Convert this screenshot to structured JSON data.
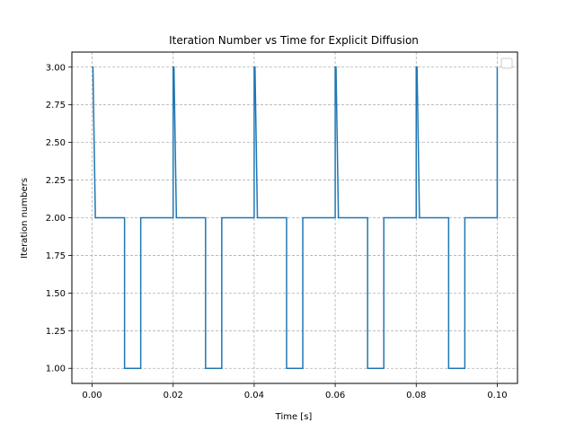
{
  "chart_data": {
    "type": "line",
    "title": "Iteration Number vs Time for Explicit Diffusion",
    "xlabel": "Time [s]",
    "ylabel": "Iteration numbers",
    "xlim": [
      -0.005,
      0.105
    ],
    "ylim": [
      0.9,
      3.1
    ],
    "xticks": [
      0.0,
      0.02,
      0.04,
      0.06,
      0.08,
      0.1
    ],
    "xtick_labels": [
      "0.00",
      "0.02",
      "0.04",
      "0.06",
      "0.08",
      "0.10"
    ],
    "yticks": [
      1.0,
      1.25,
      1.5,
      1.75,
      2.0,
      2.25,
      2.5,
      2.75,
      3.0
    ],
    "ytick_labels": [
      "1.00",
      "1.25",
      "1.50",
      "1.75",
      "2.00",
      "2.25",
      "2.50",
      "2.75",
      "3.00"
    ],
    "grid": true,
    "grid_style": "dashed",
    "legend": "upper-right, empty",
    "colors": {
      "line": "#1f77b4",
      "grid": "#b0b0b0",
      "axes": "#000000"
    },
    "series": [
      {
        "x": [
          0.0,
          0.0002,
          0.0008,
          0.008,
          0.008,
          0.012,
          0.012,
          0.02,
          0.02,
          0.0202,
          0.0208,
          0.028,
          0.028,
          0.032,
          0.032,
          0.04,
          0.04,
          0.0402,
          0.0408,
          0.048,
          0.048,
          0.052,
          0.052,
          0.06,
          0.06,
          0.0602,
          0.0608,
          0.068,
          0.068,
          0.072,
          0.072,
          0.08,
          0.08,
          0.0802,
          0.0808,
          0.088,
          0.088,
          0.092,
          0.092,
          0.1,
          0.1
        ],
        "y": [
          3,
          3,
          2,
          2,
          1,
          1,
          2,
          2,
          3,
          3,
          2,
          2,
          1,
          1,
          2,
          2,
          3,
          3,
          2,
          2,
          1,
          1,
          2,
          2,
          3,
          3,
          2,
          2,
          1,
          1,
          2,
          2,
          3,
          3,
          2,
          2,
          1,
          1,
          2,
          2,
          3
        ]
      }
    ]
  }
}
